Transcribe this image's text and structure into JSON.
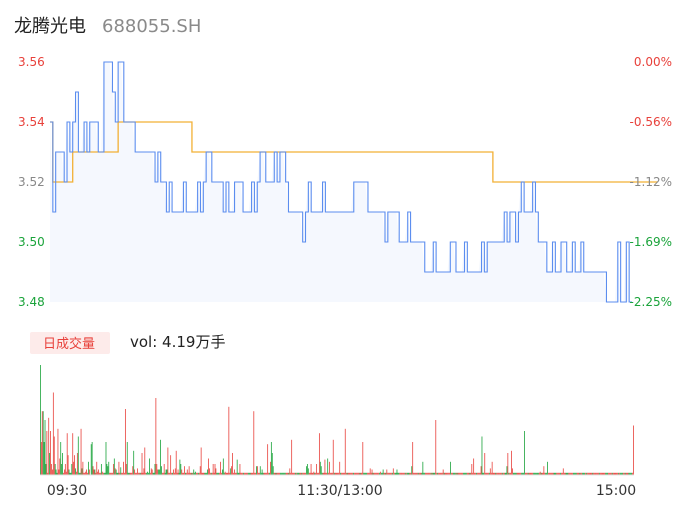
{
  "header": {
    "name": "龙腾光电",
    "code": "688055.SH"
  },
  "volume_panel": {
    "label": "日成交量",
    "text": "vol: 4.19万手"
  },
  "colors": {
    "up": "#e8413b",
    "down": "#1aa33a",
    "flat": "#888888",
    "price_line": "#5b8def",
    "avg_line": "#f2b035",
    "badge_bg": "#fdebea"
  },
  "chart_data": [
    {
      "type": "line",
      "series": [
        {
          "name": "price",
          "values": [
            3.54,
            3.51,
            3.53,
            3.53,
            3.53,
            3.52,
            3.54,
            3.53,
            3.54,
            3.55,
            3.53,
            3.53,
            3.54,
            3.53,
            3.54,
            3.54,
            3.54,
            3.53,
            3.53,
            3.56,
            3.56,
            3.56,
            3.55,
            3.54,
            3.56,
            3.56,
            3.54,
            3.54,
            3.54,
            3.54,
            3.53,
            3.53,
            3.53,
            3.53,
            3.53,
            3.53,
            3.53,
            3.52,
            3.53,
            3.52,
            3.52,
            3.51,
            3.52,
            3.51,
            3.51,
            3.51,
            3.51,
            3.52,
            3.51,
            3.51,
            3.51,
            3.51,
            3.52,
            3.51,
            3.52,
            3.53,
            3.53,
            3.52,
            3.52,
            3.52,
            3.52,
            3.51,
            3.52,
            3.51,
            3.51,
            3.52,
            3.52,
            3.52,
            3.51,
            3.51,
            3.51,
            3.52,
            3.51,
            3.52,
            3.53,
            3.53,
            3.52,
            3.52,
            3.52,
            3.53,
            3.52,
            3.53,
            3.53,
            3.52,
            3.51,
            3.51,
            3.51,
            3.51,
            3.51,
            3.5,
            3.51,
            3.52,
            3.51,
            3.51,
            3.51,
            3.51,
            3.52,
            3.51,
            3.51,
            3.51,
            3.51,
            3.51,
            3.51,
            3.51,
            3.51,
            3.51,
            3.51,
            3.52,
            3.52,
            3.52,
            3.52,
            3.52,
            3.51,
            3.51,
            3.51,
            3.51,
            3.51,
            3.51,
            3.5,
            3.51,
            3.51,
            3.51,
            3.51,
            3.5,
            3.5,
            3.5,
            3.51,
            3.5,
            3.5,
            3.5,
            3.5,
            3.5,
            3.49,
            3.49,
            3.49,
            3.5,
            3.49,
            3.49,
            3.49,
            3.49,
            3.49,
            3.5,
            3.5,
            3.49,
            3.49,
            3.49,
            3.5,
            3.49,
            3.49,
            3.49,
            3.49,
            3.49,
            3.5,
            3.49,
            3.5,
            3.5,
            3.5,
            3.5,
            3.5,
            3.5,
            3.51,
            3.5,
            3.51,
            3.51,
            3.5,
            3.51,
            3.52,
            3.51,
            3.51,
            3.51,
            3.52,
            3.51,
            3.5,
            3.5,
            3.5,
            3.49,
            3.49,
            3.5,
            3.49,
            3.49,
            3.5,
            3.5,
            3.49,
            3.49,
            3.5,
            3.49,
            3.49,
            3.5,
            3.49,
            3.49,
            3.49,
            3.49,
            3.49,
            3.49,
            3.49,
            3.49,
            3.48,
            3.48,
            3.48,
            3.48,
            3.5,
            3.48,
            3.48,
            3.5,
            3.48,
            3.48
          ],
          "color": "#5b8def"
        },
        {
          "name": "average",
          "values": [
            3.54,
            3.52,
            3.52,
            3.52,
            3.52,
            3.52,
            3.52,
            3.52,
            3.53,
            3.53,
            3.53,
            3.53,
            3.53,
            3.53,
            3.53,
            3.53,
            3.53,
            3.53,
            3.53,
            3.53,
            3.53,
            3.53,
            3.53,
            3.53,
            3.54,
            3.54,
            3.54,
            3.54,
            3.54,
            3.54,
            3.54,
            3.54,
            3.54,
            3.54,
            3.54,
            3.54,
            3.54,
            3.54,
            3.54,
            3.54,
            3.54,
            3.54,
            3.54,
            3.54,
            3.54,
            3.54,
            3.54,
            3.54,
            3.54,
            3.54,
            3.53,
            3.53,
            3.53,
            3.53,
            3.53,
            3.53,
            3.53,
            3.53,
            3.53,
            3.53,
            3.53,
            3.53,
            3.53,
            3.53,
            3.53,
            3.53,
            3.53,
            3.53,
            3.53,
            3.53,
            3.53,
            3.53,
            3.53,
            3.53,
            3.53,
            3.53,
            3.53,
            3.53,
            3.53,
            3.53,
            3.53,
            3.53,
            3.53,
            3.53,
            3.53,
            3.53,
            3.53,
            3.53,
            3.53,
            3.53,
            3.53,
            3.53,
            3.53,
            3.53,
            3.53,
            3.53,
            3.53,
            3.53,
            3.53,
            3.53,
            3.53,
            3.53,
            3.53,
            3.53,
            3.53,
            3.53,
            3.53,
            3.53,
            3.53,
            3.53,
            3.53,
            3.53,
            3.53,
            3.53,
            3.53,
            3.53,
            3.53,
            3.53,
            3.53,
            3.53,
            3.53,
            3.53,
            3.53,
            3.53,
            3.53,
            3.53,
            3.53,
            3.53,
            3.53,
            3.53,
            3.53,
            3.53,
            3.53,
            3.53,
            3.53,
            3.53,
            3.53,
            3.53,
            3.53,
            3.53,
            3.53,
            3.53,
            3.53,
            3.53,
            3.53,
            3.53,
            3.53,
            3.53,
            3.53,
            3.53,
            3.53,
            3.53,
            3.53,
            3.53,
            3.53,
            3.53,
            3.52,
            3.52,
            3.52,
            3.52,
            3.52,
            3.52,
            3.52,
            3.52,
            3.52,
            3.52,
            3.52,
            3.52,
            3.52,
            3.52,
            3.52,
            3.52,
            3.52,
            3.52,
            3.52,
            3.52,
            3.52,
            3.52,
            3.52,
            3.52,
            3.52,
            3.52,
            3.52,
            3.52,
            3.52,
            3.52,
            3.52,
            3.52,
            3.52,
            3.52,
            3.52,
            3.52,
            3.52,
            3.52,
            3.52,
            3.52,
            3.52,
            3.52,
            3.52,
            3.52,
            3.52,
            3.52,
            3.52,
            3.52,
            3.52,
            3.52,
            3.52,
            3.52,
            3.52,
            3.52,
            3.52,
            3.52,
            3.52,
            3.52,
            3.52
          ],
          "color": "#f2b035"
        }
      ],
      "ylim": [
        3.48,
        3.56
      ],
      "left_ticks": [
        "3.56",
        "3.54",
        "3.52",
        "3.50",
        "3.48"
      ],
      "right_ticks": [
        "0.00%",
        "-0.56%",
        "-1.12%",
        "-1.69%",
        "-2.25%"
      ],
      "tick_colors": [
        "#e8413b",
        "#e8413b",
        "#888888",
        "#1aa33a",
        "#1aa33a"
      ],
      "grid": false
    },
    {
      "type": "bar",
      "x_labels": [
        "09:30",
        "11:30/13:00",
        "15:00"
      ],
      "values": [
        100,
        30,
        58,
        58,
        30,
        50,
        10,
        40,
        2,
        52,
        20,
        40,
        10,
        5,
        75,
        35,
        10,
        5,
        2,
        42,
        5,
        15,
        30,
        10,
        20,
        2,
        5,
        10,
        3,
        38,
        18,
        5,
        2,
        2,
        10,
        38,
        12,
        18,
        6,
        3,
        20,
        35,
        2,
        2,
        42,
        6,
        12,
        2,
        2,
        3,
        5,
        2,
        12,
        5,
        0,
        28,
        30,
        8,
        5,
        5,
        2,
        12,
        3,
        5,
        2,
        2,
        10,
        3,
        2,
        2,
        2,
        30,
        10,
        8,
        12,
        2,
        2,
        2,
        2,
        10,
        15,
        6,
        5,
        2,
        2,
        12,
        2,
        7,
        2,
        2,
        12,
        2,
        60,
        10,
        30,
        2,
        2,
        2,
        2,
        2,
        8,
        22,
        5,
        2,
        2,
        6,
        2,
        2,
        2,
        2,
        20,
        2,
        6,
        25,
        2,
        2,
        3,
        2,
        15,
        2,
        6,
        5,
        2,
        2,
        10,
        70,
        10,
        5,
        5,
        5,
        32,
        8,
        2,
        2,
        10,
        2,
        5,
        5,
        25,
        2,
        2,
        18,
        2,
        2,
        5,
        2,
        6,
        22,
        2,
        5,
        2,
        14,
        10,
        5,
        2,
        2,
        8,
        2,
        2,
        5,
        2,
        8,
        2,
        2,
        2,
        2,
        5,
        2,
        3,
        2,
        2,
        2,
        2,
        8,
        25,
        2,
        2,
        2,
        2,
        2,
        2,
        5,
        15,
        6,
        2,
        2,
        2,
        10,
        2,
        10,
        6,
        2,
        2,
        2,
        2,
        12,
        2,
        5,
        15,
        2,
        3,
        2,
        2,
        2,
        62,
        2,
        6,
        8,
        20,
        2,
        5,
        2,
        2,
        14,
        2,
        2,
        10,
        2,
        2,
        2,
        2,
        2,
        2,
        2,
        2,
        2,
        2,
        2,
        2,
        2,
        2,
        58,
        2,
        2,
        8,
        8,
        2,
        2,
        8,
        2,
        5,
        2,
        2,
        2,
        2,
        2,
        28,
        2,
        2,
        12,
        30,
        20,
        8,
        2,
        2,
        2,
        2,
        2,
        2,
        2,
        2,
        2,
        2,
        2,
        2,
        2,
        2,
        2,
        2,
        2,
        6,
        2,
        32,
        2,
        2,
        2,
        2,
        2,
        2,
        2,
        2,
        2,
        2,
        2,
        2,
        2,
        2,
        2,
        8,
        10,
        6,
        2,
        2,
        10,
        2,
        2,
        3,
        2,
        2,
        10,
        2,
        2,
        38,
        12,
        8,
        2,
        2,
        2,
        14,
        2,
        2,
        15,
        2,
        12,
        2,
        2,
        2,
        32,
        2,
        2,
        2,
        2,
        2,
        2,
        12,
        2,
        2,
        2,
        2,
        2,
        42,
        2,
        2,
        2,
        2,
        2,
        2,
        2,
        2,
        2,
        2,
        2,
        2,
        2,
        2,
        2,
        2,
        2,
        2,
        30,
        2,
        2,
        2,
        2,
        2,
        2,
        2,
        6,
        2,
        5,
        2,
        2,
        2,
        2,
        2,
        2,
        2,
        2,
        3,
        2,
        2,
        5,
        2,
        2,
        2,
        5,
        2,
        2,
        2,
        2,
        2,
        2,
        6,
        2,
        2,
        2,
        5,
        2,
        2,
        2,
        2,
        2,
        2,
        2,
        2,
        2,
        2,
        2,
        2,
        2,
        2,
        2,
        8,
        30,
        2,
        2,
        2,
        2,
        2,
        2,
        2,
        2,
        2,
        2,
        12,
        2,
        2,
        2,
        2,
        2,
        2,
        2,
        2,
        2,
        2,
        2,
        2,
        2,
        50,
        2,
        2,
        2,
        2,
        2,
        2,
        2,
        5,
        2,
        2,
        2,
        2,
        2,
        2,
        2,
        12,
        2,
        2,
        2,
        2,
        2,
        2,
        2,
        2,
        2,
        2,
        2,
        2,
        2,
        2,
        2,
        2,
        2,
        2,
        2,
        2,
        2,
        2,
        10,
        2,
        15,
        2,
        2,
        2,
        2,
        2,
        2,
        2,
        8,
        35,
        2,
        2,
        20,
        2,
        2,
        2,
        2,
        2,
        6,
        2,
        12,
        2,
        2,
        2,
        2,
        2,
        2,
        2,
        2,
        2,
        2,
        2,
        2,
        2,
        2,
        2,
        8,
        20,
        2,
        2,
        2,
        22,
        6,
        2,
        2,
        2,
        2,
        2,
        2,
        2,
        2,
        2,
        2,
        2,
        2,
        40,
        2,
        2,
        2,
        2,
        2,
        2,
        2,
        2,
        2,
        2,
        2,
        2,
        2,
        2,
        2,
        2,
        3,
        2,
        2,
        2,
        8,
        2,
        2,
        2,
        12,
        2,
        2,
        2,
        2,
        2,
        2,
        2,
        2,
        2,
        2,
        2,
        2,
        2,
        2,
        2,
        2,
        6,
        2,
        2,
        2,
        2,
        2,
        2,
        2,
        2,
        2,
        2,
        2,
        2,
        2,
        2,
        2,
        2,
        2,
        2,
        2,
        2,
        2,
        2,
        2,
        2,
        2,
        2,
        2,
        2,
        2,
        2,
        2,
        2,
        2,
        2,
        2,
        2,
        2,
        2,
        2,
        2,
        2,
        2,
        2,
        2,
        2,
        2,
        2,
        2,
        2,
        2,
        2,
        2,
        2,
        2,
        2,
        2,
        2,
        2,
        2,
        2,
        2,
        2,
        2,
        2,
        2,
        2,
        2,
        2,
        2,
        2,
        2,
        2,
        2,
        2,
        2,
        45
      ],
      "colors": []
    }
  ]
}
